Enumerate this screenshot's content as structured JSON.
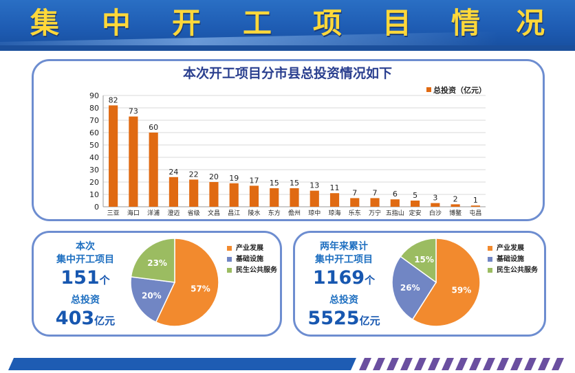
{
  "header": {
    "title_chars": [
      "集",
      "中",
      "开",
      "工",
      "项",
      "目",
      "情",
      "况"
    ]
  },
  "chart_data": {
    "type": "bar",
    "title": "本次开工项目分市县总投资情况如下",
    "categories": [
      "三亚",
      "海口",
      "洋浦",
      "澄迈",
      "省级",
      "文昌",
      "昌江",
      "陵水",
      "东方",
      "儋州",
      "琼中",
      "琼海",
      "乐东",
      "万宁",
      "五指山",
      "定安",
      "白沙",
      "博鳌",
      "屯昌"
    ],
    "series": [
      {
        "name": "总投资（亿元）",
        "values": [
          82,
          73,
          60,
          24,
          22,
          20,
          19,
          17,
          15,
          15,
          13,
          11,
          7,
          7,
          6,
          5,
          3,
          2,
          1
        ]
      }
    ],
    "yticks": [
      0,
      10,
      20,
      30,
      40,
      50,
      60,
      70,
      80,
      90
    ],
    "ylim": [
      0,
      90
    ],
    "grid": true,
    "legend_position": "top-right",
    "colors": {
      "bar": "#e06a12"
    }
  },
  "left_stats": {
    "line1": "本次",
    "line2": "集中开工项目",
    "count": "151",
    "count_unit": "个",
    "invest_label": "总投资",
    "invest": "403",
    "invest_unit": "亿元"
  },
  "right_stats": {
    "line1": "两年来累计",
    "line2": "集中开工项目",
    "count": "1169",
    "count_unit": "个",
    "invest_label": "总投资",
    "invest": "5525",
    "invest_unit": "亿元"
  },
  "pie_left": {
    "type": "pie",
    "slices": [
      {
        "label": "产业发展",
        "value": 57,
        "text": "57%",
        "color": "#f28a2e"
      },
      {
        "label": "基础设施",
        "value": 20,
        "text": "20%",
        "color": "#7186c4"
      },
      {
        "label": "民生公共服务",
        "value": 23,
        "text": "23%",
        "color": "#9bbc61"
      }
    ]
  },
  "pie_right": {
    "type": "pie",
    "slices": [
      {
        "label": "产业发展",
        "value": 59,
        "text": "59%",
        "color": "#f28a2e"
      },
      {
        "label": "基础设施",
        "value": 26,
        "text": "26%",
        "color": "#7186c4"
      },
      {
        "label": "民生公共服务",
        "value": 15,
        "text": "15%",
        "color": "#9bbc61"
      }
    ]
  },
  "colors": {
    "accent_blue": "#1e5cb3",
    "title_yellow": "#ffd83a",
    "panel_border": "#6d8dd0",
    "stripe_purple": "#6a4fa0"
  }
}
